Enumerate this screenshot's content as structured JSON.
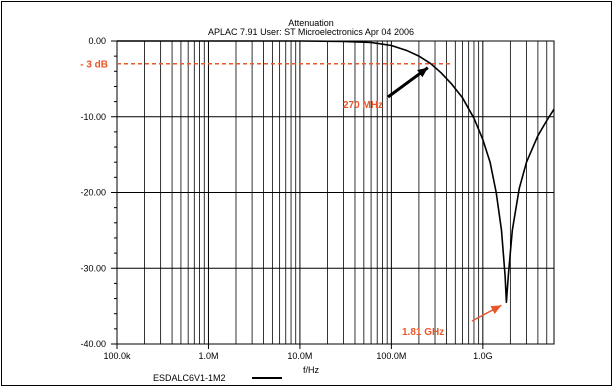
{
  "colors": {
    "curve": "#000000",
    "grid": "#000000",
    "annotation": "#e8572a",
    "frame": "#000000",
    "background": "#ffffff"
  },
  "chart_data": {
    "type": "line",
    "title": "Attenuation",
    "subtitle": "APLAC 7.91 User: ST Microelectronics  Apr 04 2006",
    "xlabel": "f/Hz",
    "ylabel": "",
    "xscale": "log",
    "xlim": [
      100000,
      6000000000
    ],
    "ylim": [
      -40,
      0
    ],
    "grid": true,
    "x_tick_labels": [
      {
        "value": 100000,
        "label": "100.0k"
      },
      {
        "value": 1000000,
        "label": "1.0M"
      },
      {
        "value": 10000000,
        "label": "10.0M"
      },
      {
        "value": 100000000,
        "label": "100.0M"
      },
      {
        "value": 1000000000,
        "label": "1.0G"
      }
    ],
    "y_tick_labels": [
      {
        "value": 0,
        "label": "0.00"
      },
      {
        "value": -10,
        "label": "-10.00"
      },
      {
        "value": -20,
        "label": "-20.00"
      },
      {
        "value": -30,
        "label": "-30.00"
      },
      {
        "value": -40,
        "label": "-40.00"
      }
    ],
    "legend": {
      "placement": "bottom-left",
      "entries": [
        "ESDALC6V1-1M2"
      ]
    },
    "series": [
      {
        "name": "ESDALC6V1-1M2",
        "x": [
          100000,
          1000000,
          10000000,
          30000000,
          60000000,
          100000000,
          150000000,
          200000000,
          270000000,
          350000000,
          450000000,
          600000000,
          800000000,
          1000000000,
          1200000000,
          1400000000,
          1600000000,
          1750000000,
          1810000000,
          1900000000,
          2100000000,
          2500000000,
          3000000000,
          4000000000,
          5000000000,
          6000000000
        ],
        "y": [
          0,
          0,
          0,
          -0.05,
          -0.2,
          -0.6,
          -1.3,
          -2,
          -3,
          -4.2,
          -5.6,
          -7.5,
          -10.2,
          -13,
          -16,
          -20,
          -25,
          -31,
          -34.5,
          -31,
          -25,
          -19.5,
          -16,
          -12.5,
          -10.5,
          -9
        ]
      }
    ],
    "annotations": [
      {
        "text": "- 3 dB",
        "type": "horizontal-marker",
        "y": -3
      },
      {
        "text": "270 MHz",
        "type": "arrow",
        "x": 270000000,
        "y": -3
      },
      {
        "text": "1.81 GHz",
        "type": "arrow",
        "x": 1810000000,
        "y": -34.5
      }
    ]
  }
}
